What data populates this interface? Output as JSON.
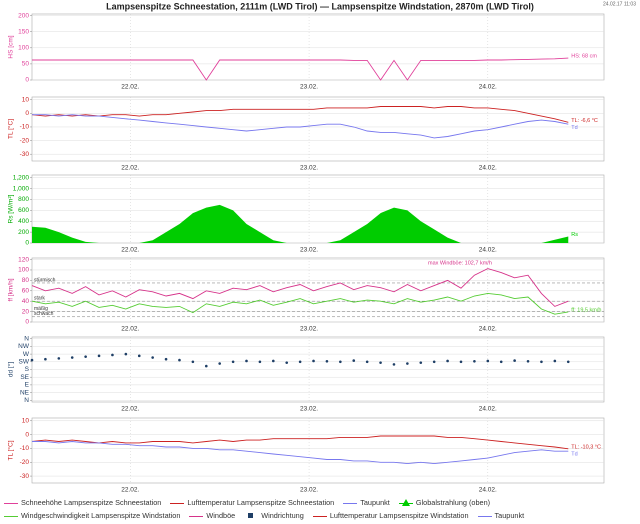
{
  "header": {
    "title": "Lampsenspitze Schneestation, 2111m (LWD Tirol) — Lampsenspitze Windstation, 2870m (LWD Tirol)",
    "timestamp": "24.02.17 11:03"
  },
  "chart_data": [
    {
      "type": "line",
      "ylabel": "HS [cm]",
      "ylabel_color": "#e0409a",
      "x": [
        21.45,
        21.525,
        21.6,
        21.675,
        21.75,
        21.825,
        21.9,
        21.975,
        22.05,
        22.125,
        22.2,
        22.275,
        22.35,
        22.425,
        22.5,
        22.575,
        22.65,
        22.725,
        22.8,
        22.875,
        22.95,
        23.025,
        23.1,
        23.175,
        23.25,
        23.325,
        23.4,
        23.475,
        23.55,
        23.625,
        23.7,
        23.775,
        23.85,
        23.925,
        24,
        24.075,
        24.15,
        24.225,
        24.3,
        24.375,
        24.45
      ],
      "xlim": [
        21.45,
        24.65
      ],
      "xticks": [
        {
          "value": 22,
          "label": "22.02."
        },
        {
          "value": 23,
          "label": "23.02."
        },
        {
          "value": 24,
          "label": "24.02."
        }
      ],
      "ylim": [
        0,
        205
      ],
      "yticks": [
        0,
        50,
        100,
        150,
        200
      ],
      "grid": true,
      "series": [
        {
          "name": "Schneehöhe Lampsenspitze Schneestation",
          "color": "#e0409a",
          "label": "HS: 68 cm",
          "values": [
            62,
            62,
            62,
            62,
            62,
            62,
            62,
            62,
            62,
            62,
            62,
            62,
            62,
            0,
            62,
            62,
            62,
            62,
            62,
            62,
            62,
            62,
            62,
            62,
            61,
            61,
            0,
            61,
            0,
            61,
            61,
            61,
            61,
            61,
            62,
            62,
            63,
            64,
            65,
            66,
            68
          ]
        }
      ]
    },
    {
      "type": "line",
      "ylabel": "TL [°C]",
      "ylabel_color": "#cc2222",
      "x": [
        21.45,
        21.525,
        21.6,
        21.675,
        21.75,
        21.825,
        21.9,
        21.975,
        22.05,
        22.125,
        22.2,
        22.275,
        22.35,
        22.425,
        22.5,
        22.575,
        22.65,
        22.725,
        22.8,
        22.875,
        22.95,
        23.025,
        23.1,
        23.175,
        23.25,
        23.325,
        23.4,
        23.475,
        23.55,
        23.625,
        23.7,
        23.775,
        23.85,
        23.925,
        24,
        24.075,
        24.15,
        24.225,
        24.3,
        24.375,
        24.45
      ],
      "xlim": [
        21.45,
        24.65
      ],
      "xticks": [
        {
          "value": 22,
          "label": "22.02."
        },
        {
          "value": 23,
          "label": "23.02."
        },
        {
          "value": 24,
          "label": "24.02."
        }
      ],
      "ylim": [
        -35,
        12
      ],
      "yticks": [
        10,
        0,
        -10,
        -20,
        -30
      ],
      "grid": true,
      "series": [
        {
          "name": "Lufttemperatur Lampsenspitze Schneestation",
          "color": "#cc2222",
          "label": "TL: -6,6 °C",
          "values": [
            -1,
            -2,
            -1,
            -2,
            -1,
            -2,
            -1,
            -1,
            -2,
            -1,
            -1,
            0,
            1,
            2,
            2,
            3,
            3,
            3,
            3,
            3,
            3,
            3,
            4,
            4,
            4,
            4,
            5,
            5,
            5,
            5,
            4,
            5,
            5,
            4,
            4,
            3,
            2,
            0,
            -2,
            -4,
            -6.6
          ]
        },
        {
          "name": "Taupunkt",
          "color": "#7777ee",
          "label": "Td",
          "values": [
            -1,
            -1,
            -2,
            -1,
            -2,
            -2,
            -3,
            -4,
            -5,
            -6,
            -7,
            -8,
            -9,
            -10,
            -11,
            -12,
            -13,
            -12,
            -11,
            -10,
            -10,
            -9,
            -8,
            -8,
            -10,
            -13,
            -14,
            -14,
            -15,
            -16,
            -18,
            -17,
            -15,
            -13,
            -12,
            -10,
            -8,
            -6,
            -5,
            -6,
            -8
          ]
        }
      ]
    },
    {
      "type": "area",
      "ylabel": "Rs [W/m²]",
      "ylabel_color": "#00aa00",
      "x": [
        21.45,
        21.525,
        21.6,
        21.675,
        21.75,
        21.825,
        21.9,
        21.975,
        22.05,
        22.125,
        22.2,
        22.275,
        22.35,
        22.425,
        22.5,
        22.575,
        22.65,
        22.725,
        22.8,
        22.875,
        22.95,
        23.025,
        23.1,
        23.175,
        23.25,
        23.325,
        23.4,
        23.475,
        23.55,
        23.625,
        23.7,
        23.775,
        23.85,
        23.925,
        24,
        24.075,
        24.15,
        24.225,
        24.3,
        24.375,
        24.45
      ],
      "xlim": [
        21.45,
        24.65
      ],
      "xticks": [
        {
          "value": 22,
          "label": "22.02."
        },
        {
          "value": 23,
          "label": "23.02."
        },
        {
          "value": 24,
          "label": "24.02."
        }
      ],
      "ylim": [
        0,
        1250
      ],
      "yticks": [
        0,
        200,
        400,
        600,
        800,
        {
          "value": 1000,
          "label": "1,000"
        },
        {
          "value": 1200,
          "label": "1,200"
        }
      ],
      "grid": true,
      "series": [
        {
          "name": "Globalstrahlung (oben)",
          "color": "#00cc00",
          "label": "Rs",
          "values": [
            300,
            280,
            200,
            100,
            20,
            0,
            0,
            0,
            0,
            50,
            200,
            350,
            550,
            650,
            700,
            600,
            350,
            200,
            50,
            0,
            0,
            0,
            0,
            50,
            200,
            350,
            550,
            650,
            600,
            400,
            250,
            100,
            0,
            0,
            0,
            0,
            0,
            0,
            0,
            60,
            120
          ]
        }
      ]
    },
    {
      "type": "line",
      "ylabel": "ff [km/h]",
      "ylabel_color": "#d6338a",
      "x": [
        21.45,
        21.525,
        21.6,
        21.675,
        21.75,
        21.825,
        21.9,
        21.975,
        22.05,
        22.125,
        22.2,
        22.275,
        22.35,
        22.425,
        22.5,
        22.575,
        22.65,
        22.725,
        22.8,
        22.875,
        22.95,
        23.025,
        23.1,
        23.175,
        23.25,
        23.325,
        23.4,
        23.475,
        23.55,
        23.625,
        23.7,
        23.775,
        23.85,
        23.925,
        24,
        24.075,
        24.15,
        24.225,
        24.3,
        24.375,
        24.45
      ],
      "xlim": [
        21.45,
        24.65
      ],
      "xticks": [
        {
          "value": 22,
          "label": "22.02."
        },
        {
          "value": 23,
          "label": "23.02."
        },
        {
          "value": 24,
          "label": "24.02."
        }
      ],
      "ylim": [
        0,
        123
      ],
      "yticks": [
        0,
        20,
        40,
        60,
        80,
        100,
        120
      ],
      "grid": true,
      "thresholds": [
        {
          "value": 75,
          "label": "stürmisch"
        },
        {
          "value": 40,
          "label": "stark"
        },
        {
          "value": 20,
          "label": "mäßig"
        },
        {
          "value": 10,
          "label": "schwach"
        }
      ],
      "annotation": "max Windböe: 102,7 km/h",
      "series": [
        {
          "name": "Windgeschwindigkeit Lampsenspitze Windstation",
          "color": "#55cc33",
          "label": "ff: 19,5 km/h",
          "values": [
            40,
            35,
            38,
            30,
            40,
            28,
            32,
            25,
            35,
            30,
            28,
            30,
            18,
            35,
            30,
            38,
            35,
            42,
            32,
            38,
            45,
            35,
            40,
            45,
            38,
            42,
            40,
            35,
            45,
            38,
            42,
            48,
            40,
            50,
            55,
            52,
            45,
            48,
            25,
            15,
            19.5
          ]
        },
        {
          "name": "Windböe",
          "color": "#d6338a",
          "values": [
            70,
            60,
            65,
            55,
            68,
            52,
            60,
            48,
            62,
            58,
            50,
            55,
            45,
            60,
            55,
            65,
            62,
            70,
            58,
            66,
            72,
            60,
            68,
            75,
            62,
            70,
            66,
            58,
            72,
            60,
            70,
            80,
            65,
            90,
            102.7,
            95,
            85,
            90,
            55,
            30,
            40
          ]
        }
      ]
    },
    {
      "type": "scatter",
      "ylabel": "dd [°]",
      "ylabel_color": "#1f3f66",
      "x": [
        21.45,
        21.525,
        21.6,
        21.675,
        21.75,
        21.825,
        21.9,
        21.975,
        22.05,
        22.125,
        22.2,
        22.275,
        22.35,
        22.425,
        22.5,
        22.575,
        22.65,
        22.725,
        22.8,
        22.875,
        22.95,
        23.025,
        23.1,
        23.175,
        23.25,
        23.325,
        23.4,
        23.475,
        23.55,
        23.625,
        23.7,
        23.775,
        23.85,
        23.925,
        24,
        24.075,
        24.15,
        24.225,
        24.3,
        24.375,
        24.45
      ],
      "xlim": [
        21.45,
        24.65
      ],
      "xticks": [
        {
          "value": 22,
          "label": "22.02."
        },
        {
          "value": 23,
          "label": "23.02."
        },
        {
          "value": 24,
          "label": "24.02."
        }
      ],
      "ylim": [
        -10,
        370
      ],
      "yticks": [
        {
          "value": 360,
          "label": "N"
        },
        {
          "value": 315,
          "label": "NW"
        },
        {
          "value": 270,
          "label": "W"
        },
        {
          "value": 225,
          "label": "SW"
        },
        {
          "value": 180,
          "label": "S"
        },
        {
          "value": 135,
          "label": "SE"
        },
        {
          "value": 90,
          "label": "E"
        },
        {
          "value": 45,
          "label": "NE"
        },
        {
          "value": 0,
          "label": "N"
        }
      ],
      "grid": true,
      "series": [
        {
          "name": "Windrichtung",
          "color": "#1f3f66",
          "values": [
            235,
            240,
            245,
            250,
            255,
            260,
            265,
            270,
            260,
            250,
            240,
            235,
            225,
            200,
            215,
            225,
            230,
            225,
            230,
            220,
            225,
            230,
            228,
            225,
            232,
            225,
            220,
            210,
            215,
            220,
            225,
            230,
            225,
            228,
            230,
            225,
            232,
            228,
            225,
            230,
            225
          ]
        }
      ]
    },
    {
      "type": "line",
      "ylabel": "TL [°C]",
      "ylabel_color": "#cc2222",
      "x": [
        21.45,
        21.525,
        21.6,
        21.675,
        21.75,
        21.825,
        21.9,
        21.975,
        22.05,
        22.125,
        22.2,
        22.275,
        22.35,
        22.425,
        22.5,
        22.575,
        22.65,
        22.725,
        22.8,
        22.875,
        22.95,
        23.025,
        23.1,
        23.175,
        23.25,
        23.325,
        23.4,
        23.475,
        23.55,
        23.625,
        23.7,
        23.775,
        23.85,
        23.925,
        24,
        24.075,
        24.15,
        24.225,
        24.3,
        24.375,
        24.45
      ],
      "xlim": [
        21.45,
        24.65
      ],
      "xticks": [
        {
          "value": 22,
          "label": "22.02."
        },
        {
          "value": 23,
          "label": "23.02."
        },
        {
          "value": 24,
          "label": "24.02."
        }
      ],
      "ylim": [
        -35,
        12
      ],
      "yticks": [
        10,
        0,
        -10,
        -20,
        -30
      ],
      "grid": true,
      "series": [
        {
          "name": "Lufttemperatur Lampsenspitze Windstation",
          "color": "#cc2222",
          "label": "TL: -10,3 °C",
          "values": [
            -5,
            -4,
            -5,
            -4,
            -5,
            -6,
            -5,
            -6,
            -6,
            -5,
            -5,
            -5,
            -6,
            -5,
            -4,
            -5,
            -4,
            -4,
            -3,
            -3,
            -3,
            -3,
            -3,
            -2,
            -2,
            -2,
            -1,
            -1,
            -1,
            -1,
            -1,
            -2,
            -2,
            -3,
            -4,
            -5,
            -6,
            -7,
            -8,
            -9,
            -10.3
          ]
        },
        {
          "name": "Taupunkt",
          "color": "#7777ee",
          "label": "Td",
          "values": [
            -5,
            -5,
            -6,
            -5,
            -6,
            -6,
            -7,
            -7,
            -8,
            -8,
            -9,
            -9,
            -10,
            -10,
            -11,
            -11,
            -12,
            -13,
            -14,
            -15,
            -16,
            -17,
            -18,
            -18,
            -19,
            -19,
            -20,
            -20,
            -21,
            -20,
            -21,
            -20,
            -19,
            -18,
            -17,
            -15,
            -13,
            -12,
            -11,
            -12,
            -12
          ]
        }
      ]
    }
  ]
}
